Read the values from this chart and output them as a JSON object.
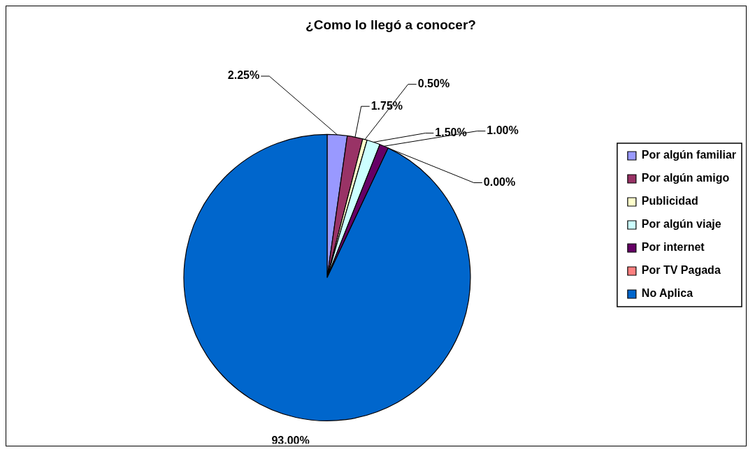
{
  "chart_data": {
    "type": "pie",
    "title": "¿Como lo llegó a conocer?",
    "categories": [
      "Por algún familiar",
      "Por algún amigo",
      "Publicidad",
      "Por algún viaje",
      "Por internet",
      "Por TV Pagada",
      "No Aplica"
    ],
    "values": [
      2.25,
      1.75,
      0.5,
      1.5,
      1.0,
      0.0,
      93.0
    ],
    "value_labels": [
      "2.25%",
      "1.75%",
      "0.50%",
      "1.50%",
      "1.00%",
      "0.00%",
      "93.00%"
    ],
    "colors": [
      "#9999ff",
      "#993366",
      "#ffffcc",
      "#ccffff",
      "#660066",
      "#ff8080",
      "#0066cc"
    ],
    "legend": "right"
  }
}
